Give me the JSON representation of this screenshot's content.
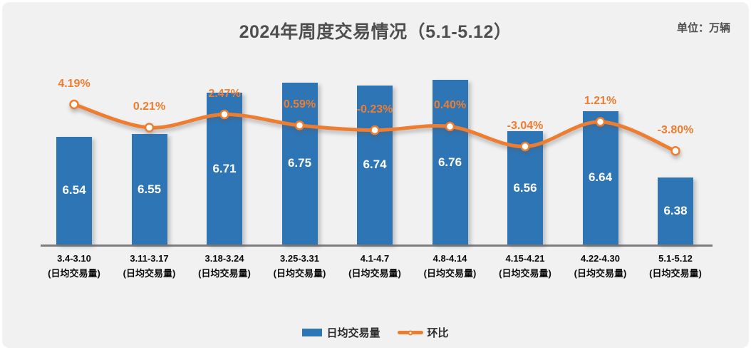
{
  "chart_data": {
    "type": "bar+line",
    "title": "2024年周度交易情况（5.1-5.12）",
    "unit_label": "单位：万辆",
    "categories": [
      "3.4-3.10",
      "3.11-3.17",
      "3.18-3.24",
      "3.25-3.31",
      "4.1-4.7",
      "4.8-4.14",
      "4.15-4.21",
      "4.22-4.30",
      "5.1-5.12"
    ],
    "category_sublabel": "(日均交易量)",
    "series": [
      {
        "name": "日均交易量",
        "type": "bar",
        "axis": "y1",
        "color": "#2E75B6",
        "values": [
          6.54,
          6.55,
          6.71,
          6.75,
          6.74,
          6.76,
          6.56,
          6.64,
          6.38
        ],
        "labels": [
          "6.54",
          "6.55",
          "6.71",
          "6.75",
          "6.74",
          "6.76",
          "6.56",
          "6.64",
          "6.38"
        ]
      },
      {
        "name": "环比",
        "type": "line",
        "axis": "y2",
        "color": "#ED7D31",
        "marker": "white-circle",
        "values": [
          4.19,
          0.21,
          2.47,
          0.59,
          -0.23,
          0.4,
          -3.04,
          1.21,
          -3.8
        ],
        "labels": [
          "4.19%",
          "0.21%",
          "2.47%",
          "0.59%",
          "-0.23%",
          "0.40%",
          "-3.04%",
          "1.21%",
          "-3.80%"
        ]
      }
    ],
    "y1_axis": {
      "min": 6.12,
      "max": 6.8,
      "visible": false
    },
    "y2_axis": {
      "min": -20,
      "max": 10.5,
      "visible": false
    },
    "grid": false,
    "legend_position": "bottom",
    "background_color": "#F1F1F2",
    "axis_line_color": "#7D7D7D",
    "value_label_color": "#FFFFFF",
    "pct_label_color": "#ED7D31"
  }
}
